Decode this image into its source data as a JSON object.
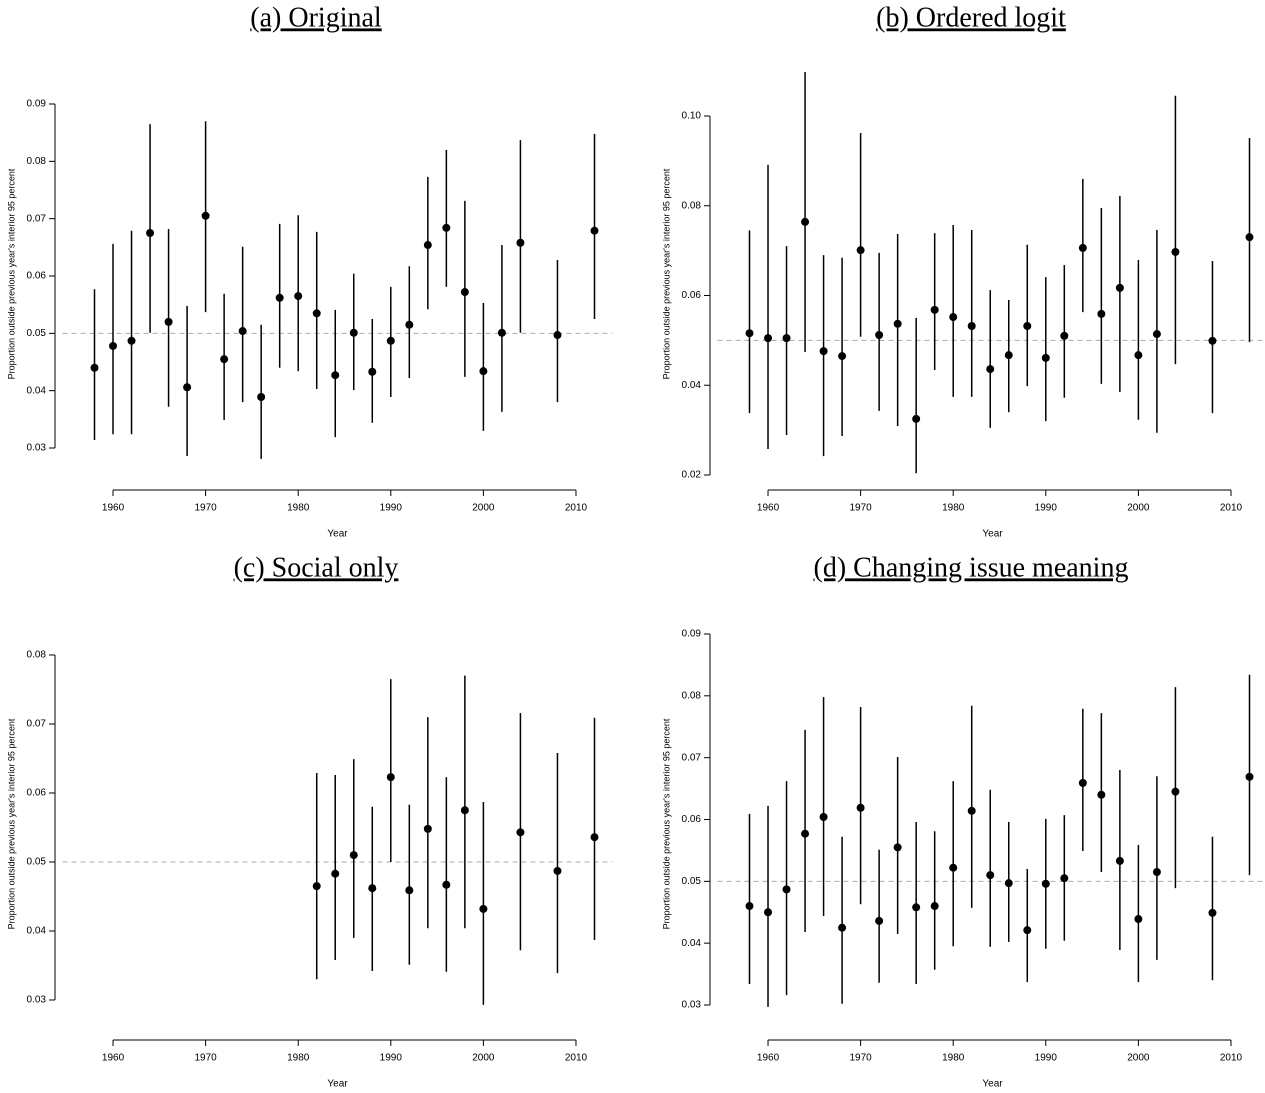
{
  "chart_data": [
    {
      "type": "scatter",
      "title": "(a) Original",
      "xlabel": "Year",
      "ylabel": "Proportion outside previous year's interior 95 percent",
      "color": "#000000",
      "reference_line": 0.05,
      "x": [
        1958,
        1960,
        1962,
        1964,
        1966,
        1968,
        1970,
        1972,
        1974,
        1976,
        1978,
        1980,
        1982,
        1984,
        1986,
        1988,
        1990,
        1992,
        1994,
        1996,
        1998,
        2000,
        2002,
        2004,
        2008,
        2012
      ],
      "values": [
        0.044,
        0.0478,
        0.0487,
        0.0675,
        0.052,
        0.0406,
        0.0705,
        0.0455,
        0.0504,
        0.0389,
        0.0562,
        0.0565,
        0.0535,
        0.0427,
        0.0501,
        0.0433,
        0.0487,
        0.0515,
        0.0654,
        0.0684,
        0.0572,
        0.0434,
        0.0501,
        0.0658,
        0.0497,
        0.0679
      ],
      "low": [
        0.0314,
        0.0324,
        0.0324,
        0.0501,
        0.0372,
        0.0286,
        0.0537,
        0.0349,
        0.038,
        0.0281,
        0.044,
        0.0434,
        0.0403,
        0.0319,
        0.0401,
        0.0344,
        0.0389,
        0.0422,
        0.0542,
        0.0581,
        0.0424,
        0.033,
        0.0363,
        0.0501,
        0.038,
        0.0525
      ],
      "high": [
        0.0577,
        0.0656,
        0.0679,
        0.0865,
        0.0682,
        0.0548,
        0.087,
        0.0569,
        0.0651,
        0.0515,
        0.0691,
        0.0706,
        0.0677,
        0.0541,
        0.0604,
        0.0525,
        0.0581,
        0.0617,
        0.0773,
        0.082,
        0.0731,
        0.0553,
        0.0654,
        0.0837,
        0.0628,
        0.0848
      ],
      "xlim": [
        1955.84,
        2014.16
      ],
      "ylim": [
        0.02477,
        0.09593
      ],
      "xticks": [
        1960,
        1970,
        1980,
        1990,
        2000,
        2010
      ],
      "yticks": [
        0.03,
        0.04,
        0.05,
        0.06,
        0.07,
        0.08,
        0.09
      ]
    },
    {
      "type": "scatter",
      "title": "(b) Ordered logit",
      "xlabel": "Year",
      "ylabel": "Proportion outside previous year's interior 95 percent",
      "color": "#000000",
      "reference_line": 0.05,
      "x": [
        1958,
        1960,
        1962,
        1964,
        1966,
        1968,
        1970,
        1972,
        1974,
        1976,
        1978,
        1980,
        1982,
        1984,
        1986,
        1988,
        1990,
        1992,
        1994,
        1996,
        1998,
        2000,
        2002,
        2004,
        2008,
        2012
      ],
      "values": [
        0.0516,
        0.0505,
        0.0505,
        0.0764,
        0.0476,
        0.0465,
        0.0701,
        0.0512,
        0.0537,
        0.0325,
        0.0568,
        0.0552,
        0.0532,
        0.0436,
        0.0467,
        0.0532,
        0.0461,
        0.051,
        0.0706,
        0.0559,
        0.0617,
        0.0467,
        0.0514,
        0.0697,
        0.0499,
        0.073
      ],
      "low": [
        0.0338,
        0.0258,
        0.0289,
        0.0474,
        0.0242,
        0.0287,
        0.0508,
        0.0343,
        0.0309,
        0.0204,
        0.0434,
        0.0374,
        0.0374,
        0.0305,
        0.034,
        0.0398,
        0.032,
        0.0372,
        0.0563,
        0.0403,
        0.0385,
        0.0323,
        0.0294,
        0.0447,
        0.0338,
        0.0496
      ],
      "high": [
        0.0745,
        0.0891,
        0.071,
        0.1098,
        0.069,
        0.0684,
        0.0962,
        0.0695,
        0.0737,
        0.055,
        0.0739,
        0.0757,
        0.0746,
        0.0612,
        0.059,
        0.0713,
        0.0641,
        0.0668,
        0.086,
        0.0795,
        0.0822,
        0.0679,
        0.0746,
        0.1045,
        0.0677,
        0.0951
      ],
      "xlim": [
        1955.84,
        2014.16
      ],
      "ylim": [
        0.01933,
        0.11025
      ],
      "xticks": [
        1960,
        1970,
        1980,
        1990,
        2000,
        2010
      ],
      "yticks": [
        {
          "value": 0.02,
          "label": "0.02"
        },
        {
          "value": 0.04,
          "label": "0.04"
        },
        {
          "value": 0.06,
          "label": "0.06"
        },
        {
          "value": 0.08,
          "label": "0.08"
        },
        {
          "value": 0.1,
          "label": "0.10"
        }
      ]
    },
    {
      "type": "scatter",
      "title": "(c) Social only",
      "xlabel": "Year",
      "ylabel": "Proportion outside previous year's interior 95 percent",
      "color": "#000000",
      "reference_line": 0.05,
      "x": [
        1982,
        1984,
        1986,
        1988,
        1990,
        1992,
        1994,
        1996,
        1998,
        2000,
        2004,
        2008,
        2012
      ],
      "values": [
        0.0465,
        0.0483,
        0.051,
        0.0462,
        0.0623,
        0.0459,
        0.0548,
        0.0467,
        0.0575,
        0.0432,
        0.0543,
        0.0487,
        0.0536
      ],
      "low": [
        0.033,
        0.0358,
        0.039,
        0.0342,
        0.05,
        0.0351,
        0.0404,
        0.0341,
        0.0404,
        0.0293,
        0.0372,
        0.0339,
        0.0387
      ],
      "high": [
        0.0629,
        0.0626,
        0.0649,
        0.058,
        0.0765,
        0.0583,
        0.071,
        0.0623,
        0.077,
        0.0587,
        0.0716,
        0.0658,
        0.0709
      ],
      "xlim": [
        1955.84,
        2014.16
      ],
      "ylim": [
        0.02594,
        0.08507
      ],
      "xticks": [
        1960,
        1970,
        1980,
        1990,
        2000,
        2010
      ],
      "yticks": [
        0.03,
        0.04,
        0.05,
        0.06,
        0.07,
        0.08
      ]
    },
    {
      "type": "scatter",
      "title": "(d) Changing issue meaning",
      "xlabel": "Year",
      "ylabel": "Proportion outside previous year's interior 95 percent",
      "color": "#000000",
      "reference_line": 0.05,
      "x": [
        1958,
        1960,
        1962,
        1964,
        1966,
        1968,
        1970,
        1972,
        1974,
        1976,
        1978,
        1980,
        1982,
        1984,
        1986,
        1988,
        1990,
        1992,
        1994,
        1996,
        1998,
        2000,
        2002,
        2004,
        2008,
        2012
      ],
      "values": [
        0.046,
        0.045,
        0.0487,
        0.0577,
        0.0604,
        0.0425,
        0.0619,
        0.0436,
        0.0555,
        0.0458,
        0.046,
        0.0522,
        0.0614,
        0.051,
        0.0497,
        0.0421,
        0.0496,
        0.0505,
        0.0659,
        0.064,
        0.0533,
        0.0439,
        0.0515,
        0.0645,
        0.0449,
        0.0669
      ],
      "low": [
        0.0334,
        0.0297,
        0.0316,
        0.0418,
        0.0444,
        0.0302,
        0.0463,
        0.0336,
        0.0415,
        0.0334,
        0.0357,
        0.0395,
        0.0457,
        0.0394,
        0.0402,
        0.0337,
        0.0391,
        0.0404,
        0.0549,
        0.0515,
        0.0389,
        0.0337,
        0.0373,
        0.0489,
        0.034,
        0.051
      ],
      "high": [
        0.0609,
        0.0622,
        0.0662,
        0.0745,
        0.0798,
        0.0572,
        0.0782,
        0.0551,
        0.0701,
        0.0596,
        0.0581,
        0.0662,
        0.0784,
        0.0648,
        0.0596,
        0.052,
        0.0601,
        0.0607,
        0.0779,
        0.0772,
        0.068,
        0.0559,
        0.067,
        0.0814,
        0.0572,
        0.0834
      ],
      "xlim": [
        1955.84,
        2014.16
      ],
      "ylim": [
        0.02628,
        0.09226
      ],
      "xticks": [
        1960,
        1970,
        1980,
        1990,
        2000,
        2010
      ],
      "yticks": [
        0.03,
        0.04,
        0.05,
        0.06,
        0.07,
        0.08,
        0.09
      ]
    }
  ]
}
